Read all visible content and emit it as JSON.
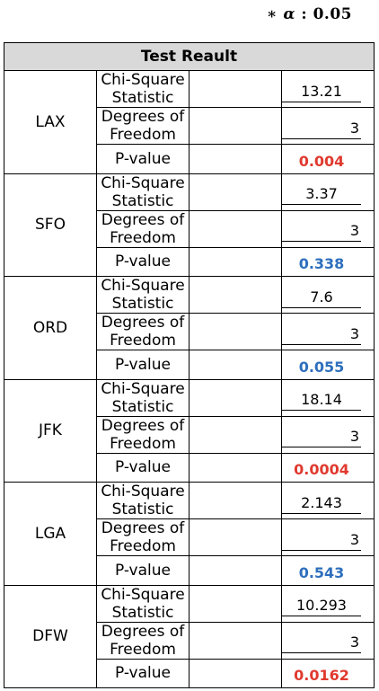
{
  "alpha_note": {
    "prefix": "∗ ",
    "symbol": "α",
    "sep": " : ",
    "value": "0.05"
  },
  "table": {
    "header": "Test Reault",
    "labels": {
      "chi": "Chi-Square Statistic",
      "df": "Degrees of Freedom",
      "p": "P-value"
    },
    "colors": {
      "significant": "#e03a2f",
      "not_significant": "#2e6fbd"
    },
    "rows": [
      {
        "airport": "LAX",
        "chi": "13.21",
        "df": "3",
        "p": "0.004",
        "significant": true
      },
      {
        "airport": "SFO",
        "chi": "3.37",
        "df": "3",
        "p": "0.338",
        "significant": false
      },
      {
        "airport": "ORD",
        "chi": "7.6",
        "df": "3",
        "p": "0.055",
        "significant": false
      },
      {
        "airport": "JFK",
        "chi": "18.14",
        "df": "3",
        "p": "0.0004",
        "significant": true
      },
      {
        "airport": "LGA",
        "chi": "2.143",
        "df": "3",
        "p": "0.543",
        "significant": false
      },
      {
        "airport": "DFW",
        "chi": "10.293",
        "df": "3",
        "p": "0.0162",
        "significant": true
      }
    ]
  }
}
